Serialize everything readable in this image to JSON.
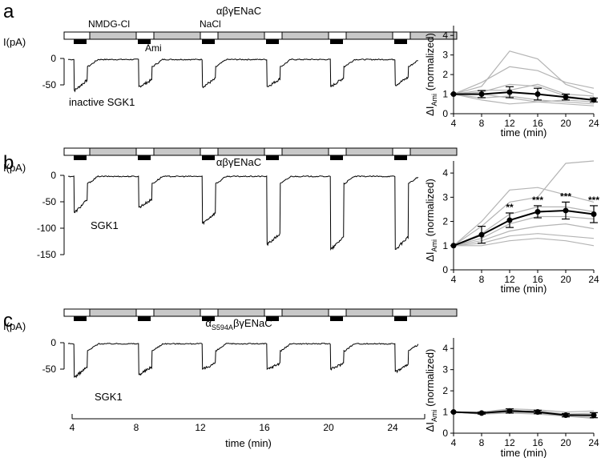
{
  "figure": {
    "panel_letters": [
      "a",
      "b",
      "c"
    ],
    "solution_labels": {
      "nmdg": "NMDG-Cl",
      "nacl": "NaCl",
      "ami": "Ami"
    },
    "current_axis_label": "I(pA)",
    "time_axis_label": "time (min)",
    "time_ticks": [
      "4",
      "8",
      "12",
      "16",
      "20",
      "24"
    ],
    "colors": {
      "nmdg_bar": "#c8c8c8",
      "nacl_bar": "#ffffff",
      "ami_bar": "#000000",
      "trace": "#000000",
      "individual_cells": "#b4b4b4",
      "mean": "#000000"
    }
  },
  "panels": [
    {
      "id": "a",
      "construct": {
        "main": "αβγENaC",
        "sub": "",
        "post": ""
      },
      "condition": "inactive SGK1",
      "trace_yticks": [
        "0",
        "-50"
      ],
      "trace_steps": [
        {
          "time_min": 4,
          "peak_pA": -60,
          "steady_pA": -40
        },
        {
          "time_min": 8,
          "peak_pA": -53,
          "steady_pA": -40
        },
        {
          "time_min": 12,
          "peak_pA": -53,
          "steady_pA": -38
        },
        {
          "time_min": 16,
          "peak_pA": -53,
          "steady_pA": -38
        },
        {
          "time_min": 20,
          "peak_pA": -53,
          "steady_pA": -36
        },
        {
          "time_min": 24,
          "peak_pA": -50,
          "steady_pA": -35
        }
      ]
    },
    {
      "id": "b",
      "construct": {
        "main": "αβγENaC",
        "sub": "",
        "post": ""
      },
      "condition": "SGK1",
      "trace_yticks": [
        "0",
        "-50",
        "-100",
        "-150"
      ],
      "trace_steps": [
        {
          "time_min": 4,
          "peak_pA": -70,
          "steady_pA": -45
        },
        {
          "time_min": 8,
          "peak_pA": -60,
          "steady_pA": -45
        },
        {
          "time_min": 12,
          "peak_pA": -90,
          "steady_pA": -70
        },
        {
          "time_min": 16,
          "peak_pA": -130,
          "steady_pA": -110
        },
        {
          "time_min": 20,
          "peak_pA": -140,
          "steady_pA": -115
        },
        {
          "time_min": 24,
          "peak_pA": -140,
          "steady_pA": -115
        }
      ]
    },
    {
      "id": "c",
      "construct": {
        "main": "α",
        "sub": "S594A",
        "post": "βγENaC"
      },
      "condition": "SGK1",
      "trace_yticks": [
        "0",
        "-50"
      ],
      "trace_steps": [
        {
          "time_min": 4,
          "peak_pA": -65,
          "steady_pA": -45
        },
        {
          "time_min": 8,
          "peak_pA": -60,
          "steady_pA": -45
        },
        {
          "time_min": 12,
          "peak_pA": -50,
          "steady_pA": -38
        },
        {
          "time_min": 16,
          "peak_pA": -50,
          "steady_pA": -38
        },
        {
          "time_min": 20,
          "peak_pA": -50,
          "steady_pA": -38
        },
        {
          "time_min": 24,
          "peak_pA": -55,
          "steady_pA": -40
        }
      ]
    }
  ],
  "chart_data": [
    {
      "type": "line",
      "panel": "a",
      "xlabel": "time (min)",
      "ylabel_main": "ΔI",
      "ylabel_sub": "Ami",
      "ylabel_post": " (normalized)",
      "x": [
        4,
        8,
        12,
        16,
        20,
        24
      ],
      "xlim": [
        4,
        24
      ],
      "ylim": [
        0,
        4.5
      ],
      "yticks": [
        0,
        1,
        2,
        3,
        4
      ],
      "mean": [
        1.0,
        1.0,
        1.1,
        1.0,
        0.85,
        0.7
      ],
      "error": [
        0.0,
        0.18,
        0.28,
        0.3,
        0.15,
        0.1
      ],
      "significance": [
        "",
        "",
        "",
        "",
        "",
        ""
      ],
      "individual": [
        [
          1,
          1.6,
          2.4,
          2.2,
          1.6,
          1.3
        ],
        [
          1,
          1.4,
          3.2,
          2.8,
          1.5,
          1.0
        ],
        [
          1,
          1.1,
          1.5,
          1.4,
          0.9,
          0.7
        ],
        [
          1,
          0.8,
          0.9,
          0.7,
          0.6,
          0.5
        ],
        [
          1,
          1.0,
          0.8,
          0.6,
          0.5,
          0.4
        ],
        [
          1,
          0.7,
          0.5,
          0.6,
          0.7,
          0.6
        ],
        [
          1,
          1.2,
          1.2,
          1.5,
          1.0,
          0.9
        ]
      ]
    },
    {
      "type": "line",
      "panel": "b",
      "xlabel": "time (min)",
      "ylabel_main": "ΔI",
      "ylabel_sub": "Ami",
      "ylabel_post": " (normalized)",
      "x": [
        4,
        8,
        12,
        16,
        20,
        24
      ],
      "xlim": [
        4,
        24
      ],
      "ylim": [
        0,
        4.5
      ],
      "yticks": [
        0,
        1,
        2,
        3,
        4
      ],
      "mean": [
        1.0,
        1.45,
        2.05,
        2.4,
        2.45,
        2.3
      ],
      "error": [
        0.0,
        0.35,
        0.3,
        0.25,
        0.35,
        0.35
      ],
      "significance": [
        "",
        "",
        "**",
        "***",
        "***",
        "***"
      ],
      "individual": [
        [
          1,
          2.0,
          3.3,
          3.4,
          3.1,
          2.8
        ],
        [
          1,
          1.8,
          2.8,
          3.0,
          4.4,
          4.5
        ],
        [
          1,
          1.5,
          2.3,
          2.6,
          2.6,
          2.4
        ],
        [
          1,
          1.3,
          1.9,
          2.2,
          2.2,
          2.1
        ],
        [
          1,
          1.2,
          1.6,
          1.8,
          1.9,
          1.7
        ],
        [
          1,
          1.1,
          1.4,
          1.5,
          1.4,
          1.3
        ],
        [
          1,
          1.0,
          1.2,
          1.3,
          1.2,
          1.0
        ]
      ]
    },
    {
      "type": "line",
      "panel": "c",
      "xlabel": "time (min)",
      "ylabel_main": "ΔI",
      "ylabel_sub": "Ami",
      "ylabel_post": " (normalized)",
      "x": [
        4,
        8,
        12,
        16,
        20,
        24
      ],
      "xlim": [
        4,
        24
      ],
      "ylim": [
        0,
        4.5
      ],
      "yticks": [
        0,
        1,
        2,
        3,
        4
      ],
      "mean": [
        1.0,
        0.95,
        1.05,
        1.0,
        0.85,
        0.85
      ],
      "error": [
        0.0,
        0.05,
        0.1,
        0.08,
        0.08,
        0.12
      ],
      "significance": [
        "",
        "",
        "",
        "",
        "",
        ""
      ],
      "individual": [
        [
          1,
          1.0,
          1.15,
          1.1,
          1.0,
          1.05
        ],
        [
          1,
          0.95,
          1.05,
          1.05,
          0.9,
          0.95
        ],
        [
          1,
          0.9,
          0.95,
          0.9,
          0.8,
          0.75
        ],
        [
          1,
          1.0,
          1.1,
          1.0,
          0.85,
          0.8
        ],
        [
          1,
          0.9,
          1.0,
          0.95,
          0.8,
          0.7
        ]
      ]
    }
  ]
}
